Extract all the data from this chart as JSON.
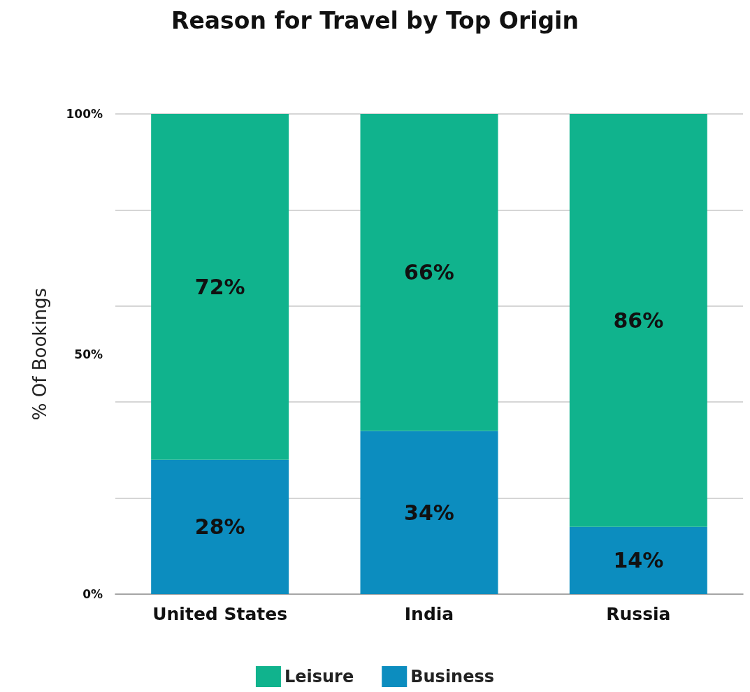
{
  "chart_data": {
    "type": "bar",
    "title": "Reason for Travel by Top Origin",
    "ylabel": "% Of Bookings",
    "categories": [
      "United States",
      "India",
      "Russia"
    ],
    "stacked": true,
    "series": [
      {
        "name": "Business",
        "color": "#0c8dbf",
        "values": [
          28,
          34,
          14
        ],
        "value_labels": [
          "28%",
          "34%",
          "14%"
        ]
      },
      {
        "name": "Leisure",
        "color": "#10b38d",
        "values": [
          72,
          66,
          86
        ],
        "value_labels": [
          "72%",
          "66%",
          "86%"
        ]
      }
    ],
    "ylim": [
      0,
      100
    ],
    "yticks": [
      {
        "value": 0,
        "label": "0%"
      },
      {
        "value": 20,
        "label": null
      },
      {
        "value": 40,
        "label": null
      },
      {
        "value": 50,
        "label": "50%"
      },
      {
        "value": 60,
        "label": null
      },
      {
        "value": 80,
        "label": null
      },
      {
        "value": 100,
        "label": "100%"
      }
    ],
    "grid": "y",
    "legend": "bottom"
  }
}
